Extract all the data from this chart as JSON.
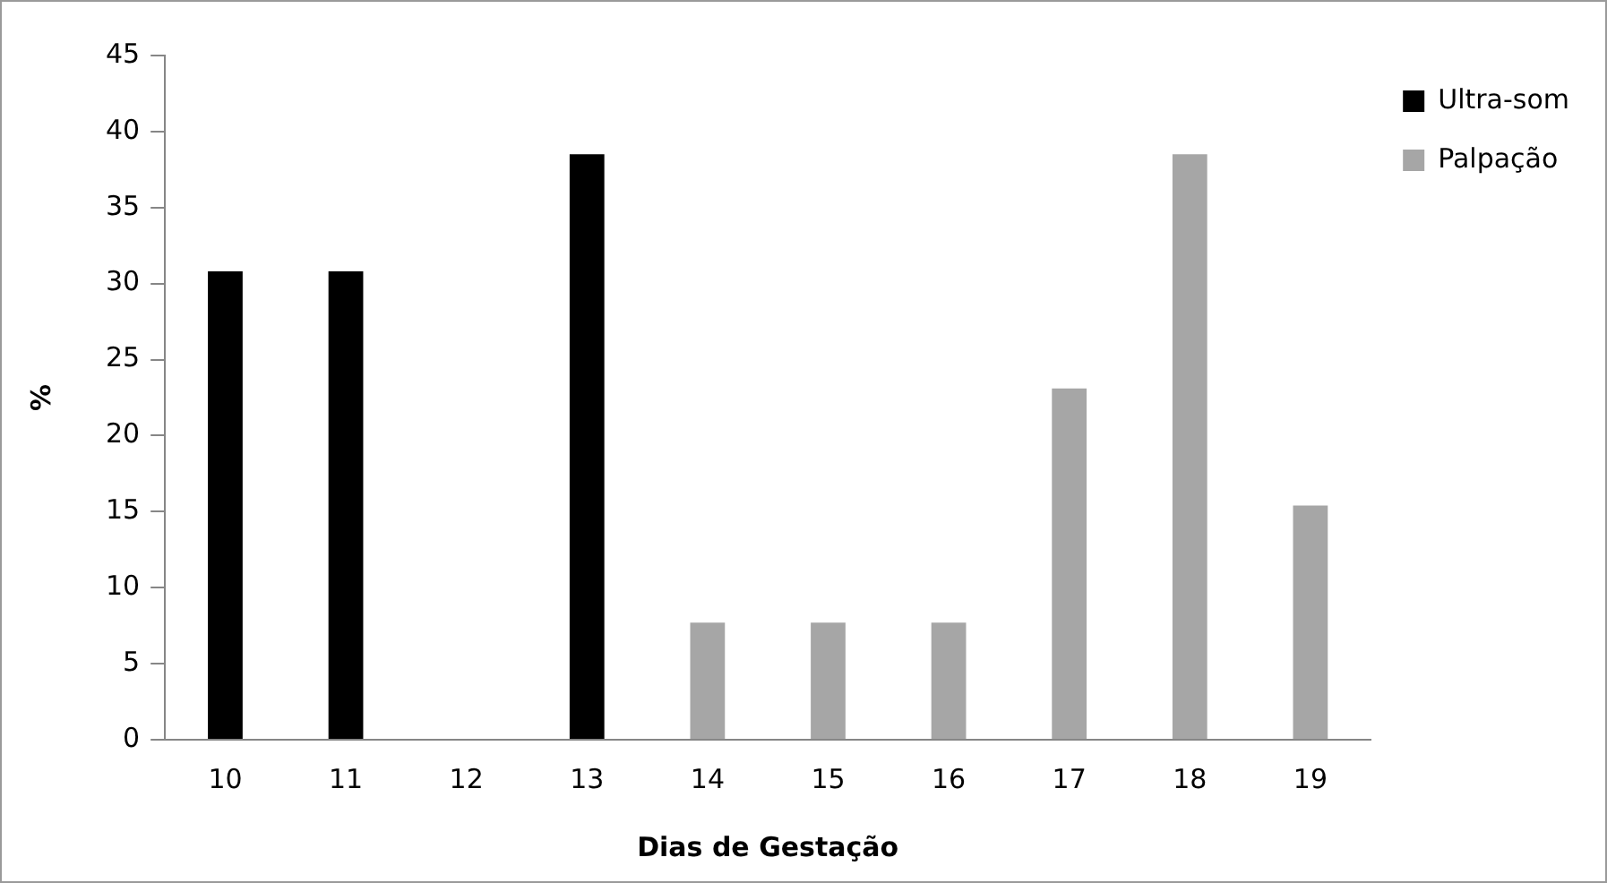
{
  "chart_data": {
    "type": "bar",
    "xlabel": "Dias de Gestação",
    "ylabel": "%",
    "categories": [
      "10",
      "11",
      "12",
      "13",
      "14",
      "15",
      "16",
      "17",
      "18",
      "19"
    ],
    "series": [
      {
        "name": "Ultra-som",
        "color": "#000000",
        "values": [
          30.8,
          30.8,
          null,
          38.5,
          null,
          null,
          null,
          null,
          null,
          null
        ]
      },
      {
        "name": "Palpação",
        "color": "#a6a6a6",
        "values": [
          null,
          null,
          null,
          null,
          7.7,
          7.7,
          7.7,
          23.1,
          38.5,
          15.4
        ]
      }
    ],
    "ylim": [
      0,
      45
    ],
    "yticks": [
      0,
      5,
      10,
      15,
      20,
      25,
      30,
      35,
      40,
      45
    ],
    "grid": false,
    "legend": "right"
  }
}
